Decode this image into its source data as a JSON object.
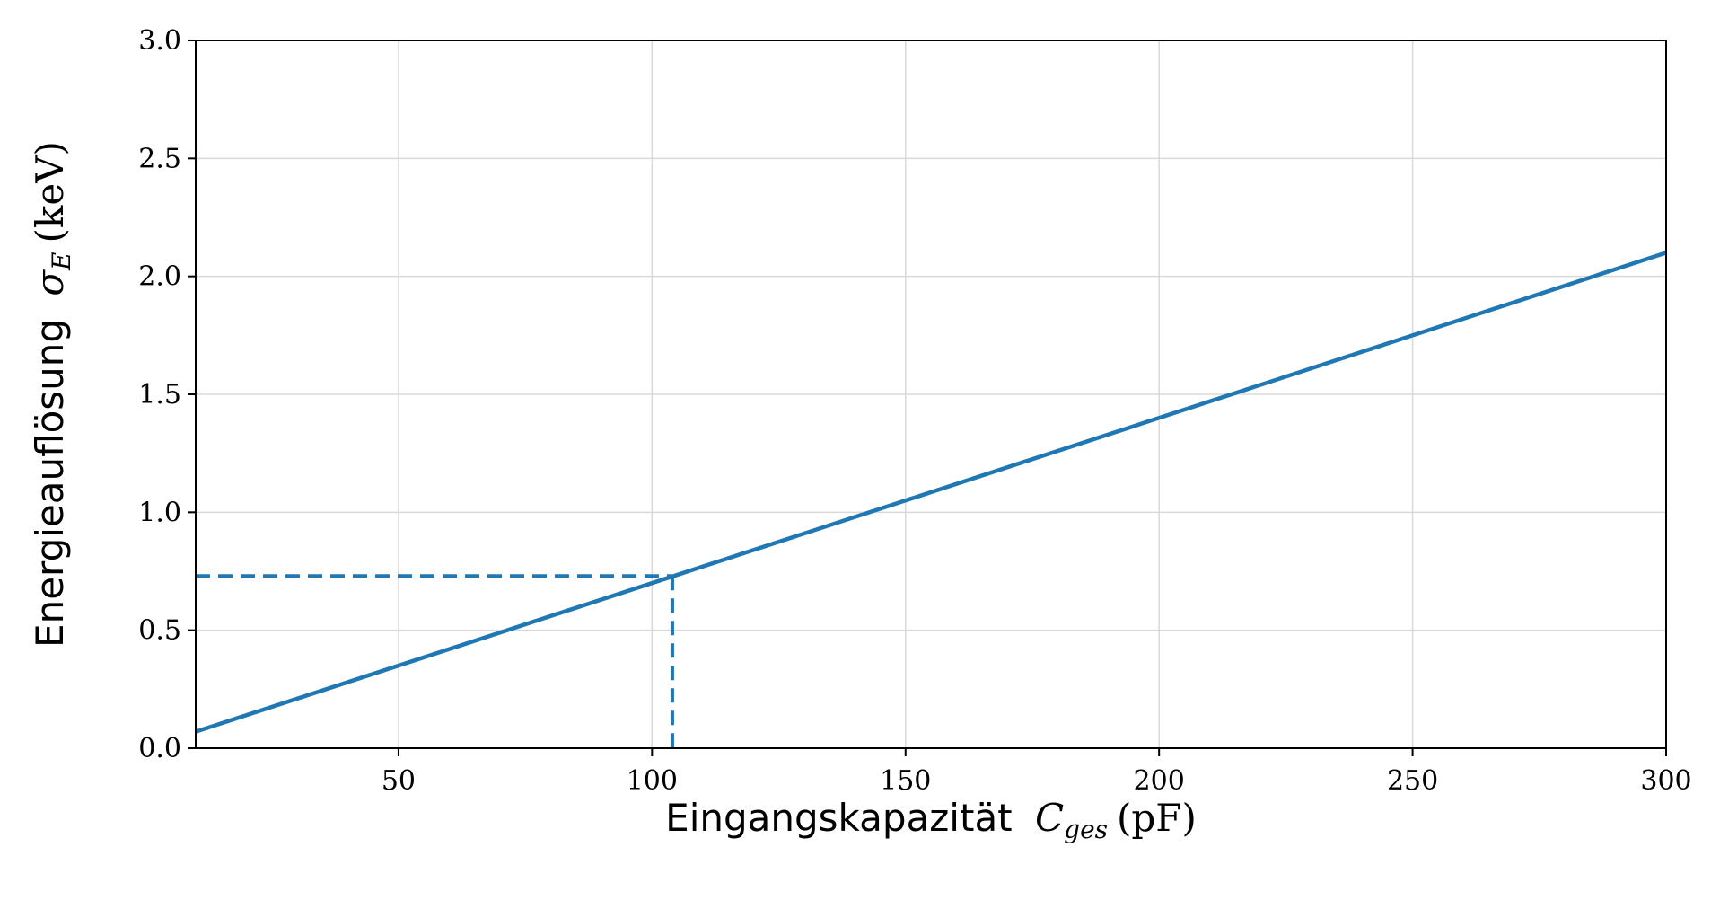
{
  "chart_data": {
    "type": "line",
    "xlabel": {
      "text": "Eingangskapazität",
      "symbol": "C",
      "subscript": "ges",
      "unit": "(pF)"
    },
    "ylabel": {
      "text": "Energieauflösung",
      "symbol": "σ",
      "subscript": "E",
      "unit": "(keV)"
    },
    "xlim": [
      10,
      300
    ],
    "ylim": [
      0.0,
      3.0
    ],
    "xticks": [
      50,
      100,
      150,
      200,
      250,
      300
    ],
    "xtick_labels": [
      "50",
      "100",
      "150",
      "200",
      "250",
      "300"
    ],
    "yticks": [
      0.0,
      0.5,
      1.0,
      1.5,
      2.0,
      2.5,
      3.0
    ],
    "ytick_labels": [
      "0.0",
      "0.5",
      "1.0",
      "1.5",
      "2.0",
      "2.5",
      "3.0"
    ],
    "grid": true,
    "series": [
      {
        "style": "solid",
        "color": "#1f77b4",
        "x": [
          10,
          300
        ],
        "y": [
          0.07,
          2.1
        ]
      }
    ],
    "annotations": [
      {
        "type": "dashed-guide",
        "color": "#1f77b4",
        "x": 104,
        "y": 0.73
      }
    ]
  }
}
